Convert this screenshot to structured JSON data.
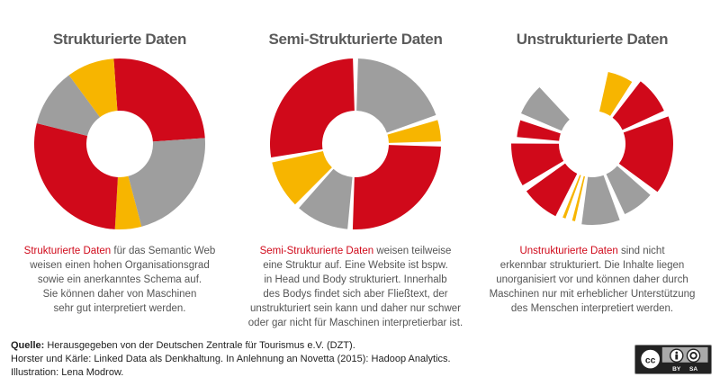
{
  "colors": {
    "red": "#d0091a",
    "gray": "#9e9e9e",
    "yellow": "#f7b500"
  },
  "diagrams": [
    {
      "title": "Strukturierte Daten",
      "highlight": "Strukturierte Daten",
      "text_first": " für das Semantic Web",
      "lines": [
        "weisen einen hohen Organisationsgrad",
        "sowie ein anerkanntes Schema auf.",
        "Sie können daher von Maschinen",
        "sehr gut interpretiert werden."
      ],
      "segments": [
        {
          "color": "red",
          "percent": 25
        },
        {
          "color": "gray",
          "percent": 22
        },
        {
          "color": "yellow",
          "percent": 5
        },
        {
          "color": "red",
          "percent": 28
        },
        {
          "color": "gray",
          "percent": 11
        },
        {
          "color": "yellow",
          "percent": 9
        }
      ]
    },
    {
      "title": "Semi-Strukturierte Daten",
      "highlight": "Semi-Strukturierte Daten",
      "text_first": " weisen teilweise",
      "lines": [
        "eine Struktur auf. Eine Website ist bspw.",
        "in Head und Body strukturiert. Innerhalb",
        "des Bodys findet sich aber Fließtext, der",
        "unstrukturiert sein kann und daher nur schwer",
        "oder gar nicht für Maschinen interpretierbar ist."
      ],
      "segments": [
        {
          "color": "gray",
          "percent": 20
        },
        {
          "color": "yellow",
          "percent": 5
        },
        {
          "color": "red",
          "percent": 26
        },
        {
          "color": "gray",
          "percent": 11
        },
        {
          "color": "yellow",
          "percent": 10
        },
        {
          "color": "red",
          "percent": 28
        }
      ]
    },
    {
      "title": "Unstrukturierte Daten",
      "highlight": "Unstrukturierte Daten",
      "text_first": " sind nicht",
      "lines": [
        "erkennbar strukturiert. Die Inhalte liegen",
        "unorganisiert vor und können daher durch",
        "Maschinen nur mit erheblicher Unterstützung",
        "des Menschen interpretiert werden."
      ],
      "segments": [
        {
          "color": "yellow",
          "percent": 7
        },
        {
          "color": "red",
          "percent": 9
        },
        {
          "color": "red",
          "percent": 17
        },
        {
          "color": "gray",
          "percent": 8
        },
        {
          "color": "gray",
          "percent": 9
        },
        {
          "color": "yellow",
          "percent": 2
        },
        {
          "color": "yellow",
          "percent": 2
        },
        {
          "color": "red",
          "percent": 9
        },
        {
          "color": "red",
          "percent": 10
        },
        {
          "color": "red",
          "percent": 5
        },
        {
          "color": "gray",
          "percent": 0
        },
        {
          "color": "gray",
          "percent": 8
        }
      ]
    }
  ],
  "footer": {
    "source_label": "Quelle:",
    "line1": " Herausgegeben von der Deutschen Zentrale für Tourismus e.V. (DZT).",
    "line2": "Horster und Kärle: Linked Data als Denkhaltung. In Anlehnung an Novetta (2015): Hadoop Analytics.",
    "line3": "Illustration: Lena Modrow."
  },
  "license": {
    "badge": "cc",
    "by": "BY",
    "sa": "SA"
  }
}
